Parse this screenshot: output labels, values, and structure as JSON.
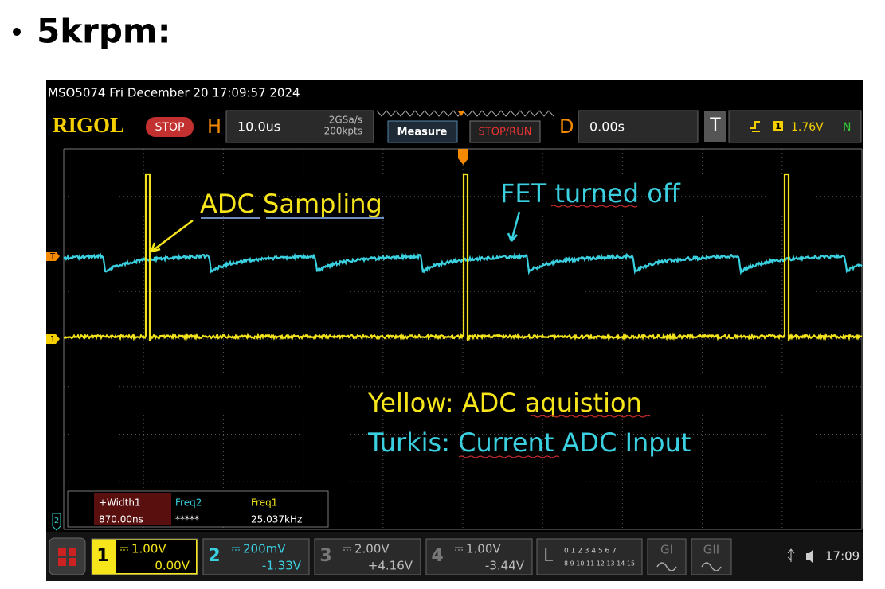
{
  "slide": {
    "title": "5krpm:"
  },
  "scope": {
    "header": "MSO5074  Fri December 20 17:09:57 2024",
    "brand": "RIGOL",
    "status": "STOP",
    "h_label": "H",
    "timebase": "10.0us",
    "sample_rate": "2GSa/s",
    "memory": "200kpts",
    "measure_button": "Measure",
    "run_button": "STOP/RUN",
    "d_label": "D",
    "delay": "0.00s",
    "t_label": "T",
    "trigger_source": "1",
    "trigger_level": "1.76V",
    "trigger_mode": "N",
    "markers": {
      "trigger": "T",
      "ch1": "1",
      "ch2": "2"
    },
    "annotations": [
      "ADC Sampling",
      "FET turned off",
      "Yellow: ADC aquistion",
      "Turkis: Current ADC Input"
    ],
    "measurements": {
      "headers": [
        "+Width1",
        "Freq2",
        "Freq1"
      ],
      "values": [
        "870.00ns",
        "*****",
        "25.037kHz"
      ]
    },
    "channels": [
      {
        "number": "1",
        "scale": "1.00V",
        "offset": "0.00V"
      },
      {
        "number": "2",
        "scale": "200mV",
        "offset": "-1.33V"
      },
      {
        "number": "3",
        "scale": "2.00V",
        "offset": "+4.16V"
      },
      {
        "number": "4",
        "scale": "1.00V",
        "offset": "-3.44V"
      }
    ],
    "logic": {
      "label": "L",
      "row1": "0 1 2 3 4 5 6 7",
      "row2": "8 9 10 11 12 13 14 15"
    },
    "generators": [
      "GI",
      "GII"
    ],
    "clock": "17:09"
  }
}
